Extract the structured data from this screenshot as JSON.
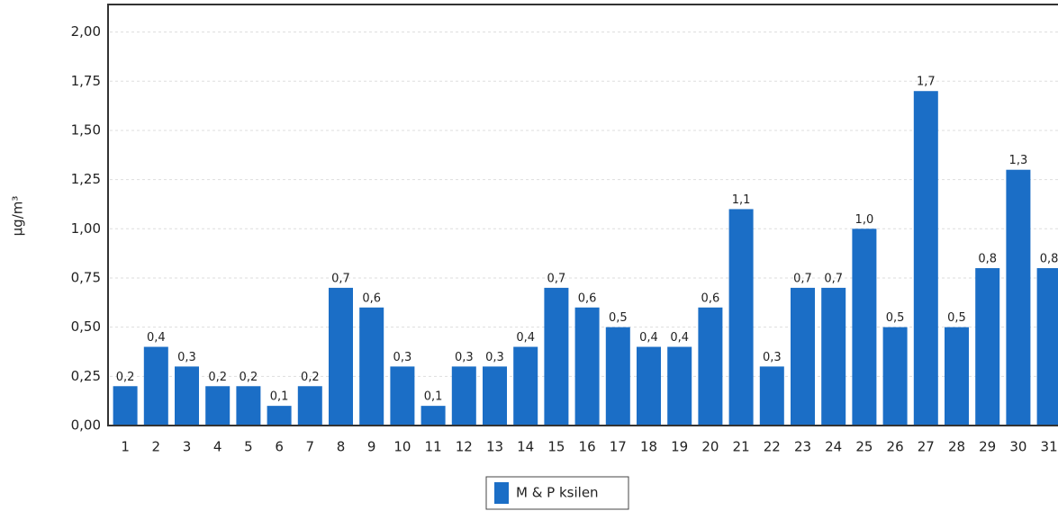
{
  "chart_data": {
    "type": "bar",
    "y_label": "µg/m³",
    "categories": [
      "1",
      "2",
      "3",
      "4",
      "5",
      "6",
      "7",
      "8",
      "9",
      "10",
      "11",
      "12",
      "13",
      "14",
      "15",
      "16",
      "17",
      "18",
      "19",
      "20",
      "21",
      "22",
      "23",
      "24",
      "25",
      "26",
      "27",
      "28",
      "29",
      "30",
      "31"
    ],
    "series": [
      {
        "name": "M & P ksilen",
        "color": "#1b6ec6",
        "values": [
          0.2,
          0.4,
          0.3,
          0.2,
          0.2,
          0.1,
          0.2,
          0.7,
          0.6,
          0.3,
          0.1,
          0.3,
          0.3,
          0.4,
          0.7,
          0.6,
          0.5,
          0.4,
          0.4,
          0.6,
          1.1,
          0.3,
          0.7,
          0.7,
          1.0,
          0.5,
          1.7,
          0.5,
          0.8,
          1.3,
          0.8
        ],
        "value_labels": [
          "0,2",
          "0,4",
          "0,3",
          "0,2",
          "0,2",
          "0,1",
          "0,2",
          "0,7",
          "0,6",
          "0,3",
          "0,1",
          "0,3",
          "0,3",
          "0,4",
          "0,7",
          "0,6",
          "0,5",
          "0,4",
          "0,4",
          "0,6",
          "1,1",
          "0,3",
          "0,7",
          "0,7",
          "1,0",
          "0,5",
          "1,7",
          "0,5",
          "0,8",
          "1,3",
          "0,8"
        ]
      }
    ],
    "ylim": [
      0,
      2.14
    ],
    "yticks": [
      {
        "value": 0,
        "label": "0,00"
      },
      {
        "value": 0.25,
        "label": "0,25"
      },
      {
        "value": 0.5,
        "label": "0,50"
      },
      {
        "value": 0.75,
        "label": "0,75"
      },
      {
        "value": 1,
        "label": "1,00"
      },
      {
        "value": 1.25,
        "label": "1,25"
      },
      {
        "value": 1.5,
        "label": "1,50"
      },
      {
        "value": 1.75,
        "label": "1,75"
      },
      {
        "value": 2,
        "label": "2,00"
      }
    ],
    "grid": true
  }
}
